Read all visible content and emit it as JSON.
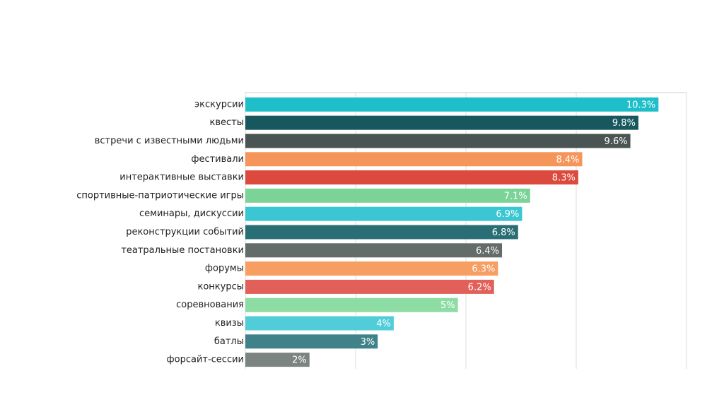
{
  "chart_data": {
    "type": "bar",
    "orientation": "horizontal",
    "categories": [
      "экскурсии",
      "квесты",
      "встречи с известными людьми",
      "фестивали",
      "интерактивные выставки",
      "спортивные-патриотические игры",
      "семинары, дискуссии",
      "реконструкции событий",
      "театральные постановки",
      "форумы",
      "конкурсы ",
      "соревнования",
      "квизы",
      "батлы",
      "форсайт-сессии"
    ],
    "values": [
      10.3,
      9.8,
      9.6,
      8.4,
      8.3,
      7.1,
      6.9,
      6.8,
      6.4,
      6.3,
      6.2,
      5.3,
      3.7,
      3.3,
      1.6
    ],
    "value_labels": [
      "10.3%",
      "9.8%",
      "9.6%",
      "8.4%",
      "8.3%",
      "7.1%",
      "6.9%",
      "6.8%",
      "6.4%",
      "6.3%",
      "6.2%",
      "5%",
      "4%",
      "3%",
      "2%"
    ],
    "colors": [
      "#1fbfca",
      "#17575e",
      "#4a5453",
      "#f6955a",
      "#dc4a3e",
      "#7bd397",
      "#3ac7d3",
      "#2a6e75",
      "#636c69",
      "#f79e63",
      "#e2605a",
      "#8ddca3",
      "#50cdd8",
      "#3f8289",
      "#7c8481"
    ],
    "xlim": [
      0,
      11
    ],
    "xticks": [
      0,
      2.75,
      5.5,
      8.25,
      11
    ],
    "grid": true
  }
}
